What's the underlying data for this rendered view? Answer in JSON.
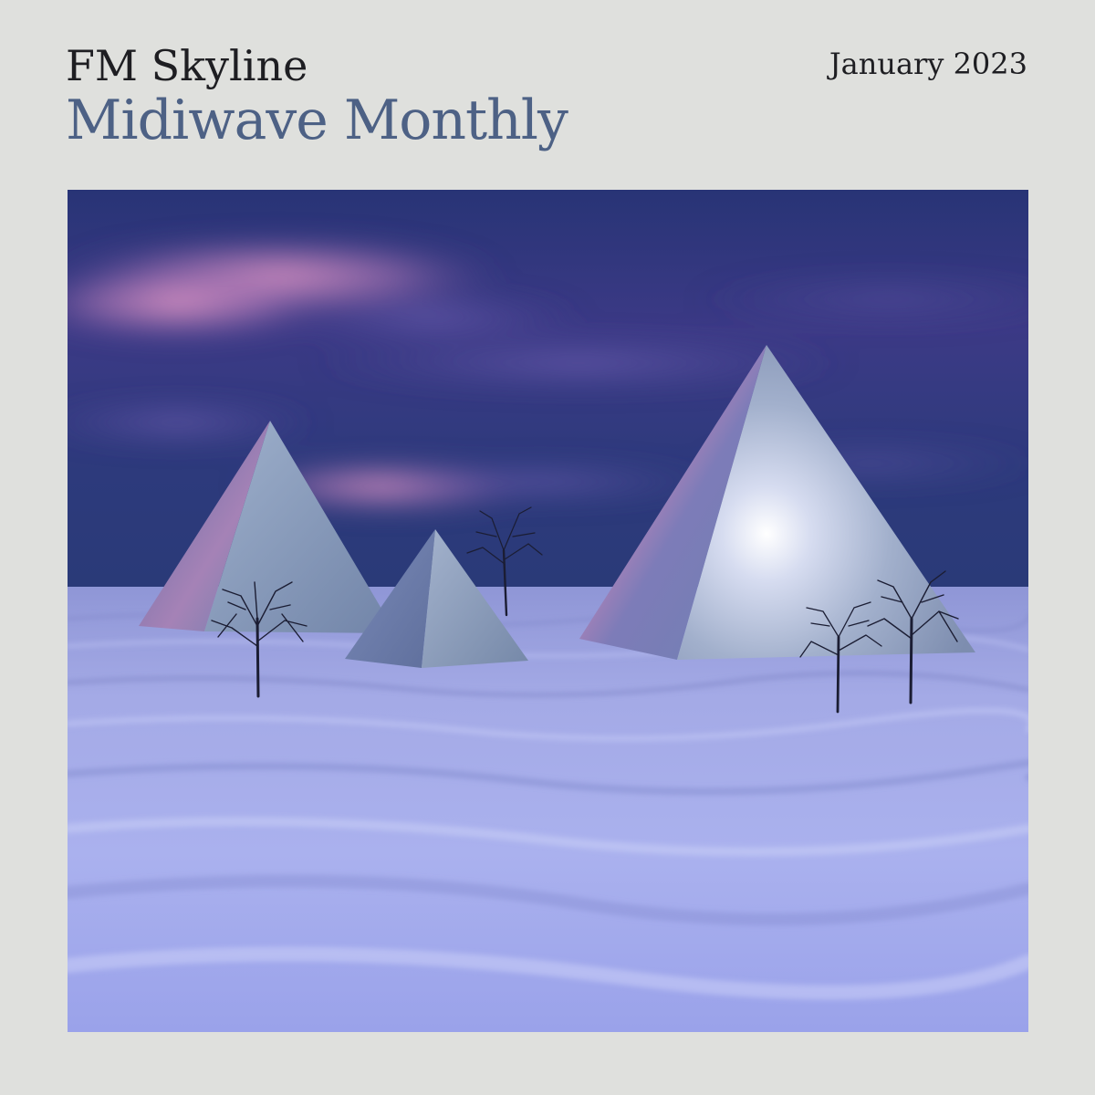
{
  "cover": {
    "artist": "FM Skyline",
    "album_title": "Midiwave Monthly",
    "release_date": "January 2023"
  },
  "colors": {
    "background": "#dfe0dd",
    "artist_text": "#1e1e22",
    "title_text": "#4d6185",
    "sky_top": "#24306e",
    "sky_cloud_pink": "#d98bbd",
    "snow": "#a9b0ee",
    "pyramid": "#9aa8c6"
  }
}
